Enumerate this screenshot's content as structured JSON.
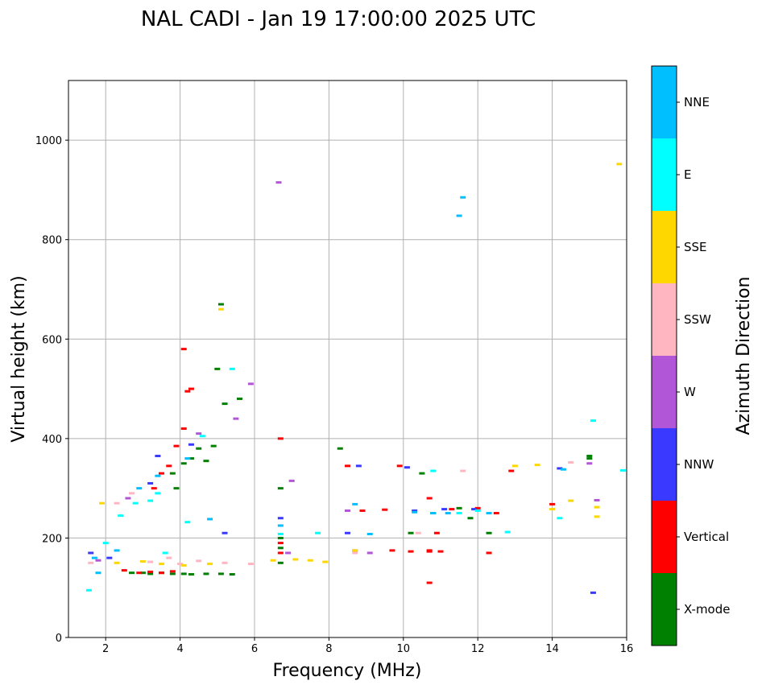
{
  "chart_data": {
    "type": "scatter",
    "title": "NAL CADI - Jan 19 17:00:00 2025 UTC",
    "xlabel": "Frequency (MHz)",
    "ylabel": "Virtual height (km)",
    "xlim": [
      1,
      16
    ],
    "ylim": [
      0,
      1120
    ],
    "xticks": [
      2,
      4,
      6,
      8,
      10,
      12,
      14,
      16
    ],
    "yticks": [
      0,
      200,
      400,
      600,
      800,
      1000
    ],
    "grid": true,
    "colorbar": {
      "label": "Azimuth Direction",
      "categories": [
        "X-mode",
        "Vertical",
        "NNW",
        "W",
        "SSW",
        "SSE",
        "E",
        "NNE"
      ],
      "colors": [
        "#008000",
        "#ff0000",
        "#3939ff",
        "#b256d8",
        "#ffb6c1",
        "#ffd700",
        "#00ffff",
        "#00bfff"
      ]
    },
    "series": [
      {
        "name": "X-mode",
        "points": [
          [
            2.7,
            130
          ],
          [
            3.0,
            130
          ],
          [
            3.2,
            128
          ],
          [
            3.5,
            130
          ],
          [
            3.8,
            128
          ],
          [
            4.1,
            128
          ],
          [
            4.3,
            127
          ],
          [
            4.7,
            128
          ],
          [
            5.1,
            128
          ],
          [
            5.4,
            127
          ],
          [
            3.8,
            330
          ],
          [
            3.9,
            300
          ],
          [
            4.1,
            350
          ],
          [
            4.3,
            360
          ],
          [
            4.5,
            380
          ],
          [
            4.7,
            355
          ],
          [
            4.9,
            385
          ],
          [
            5.2,
            470
          ],
          [
            5.6,
            480
          ],
          [
            5.0,
            540
          ],
          [
            5.1,
            670
          ],
          [
            6.7,
            200
          ],
          [
            6.7,
            180
          ],
          [
            6.7,
            300
          ],
          [
            6.7,
            150
          ],
          [
            8.3,
            380
          ],
          [
            10.5,
            330
          ],
          [
            10.2,
            210
          ],
          [
            10.8,
            250
          ],
          [
            11.5,
            260
          ],
          [
            11.8,
            240
          ],
          [
            12.3,
            210
          ],
          [
            15.0,
            360
          ],
          [
            15.0,
            365
          ]
        ]
      },
      {
        "name": "Vertical",
        "points": [
          [
            2.5,
            135
          ],
          [
            2.9,
            130
          ],
          [
            3.2,
            132
          ],
          [
            3.5,
            130
          ],
          [
            3.8,
            133
          ],
          [
            3.3,
            300
          ],
          [
            3.5,
            330
          ],
          [
            3.7,
            345
          ],
          [
            3.9,
            385
          ],
          [
            4.1,
            420
          ],
          [
            4.2,
            495
          ],
          [
            4.3,
            500
          ],
          [
            4.1,
            580
          ],
          [
            6.7,
            400
          ],
          [
            6.7,
            190
          ],
          [
            6.7,
            170
          ],
          [
            8.5,
            345
          ],
          [
            8.9,
            255
          ],
          [
            9.5,
            257
          ],
          [
            9.7,
            175
          ],
          [
            9.9,
            345
          ],
          [
            10.2,
            173
          ],
          [
            10.7,
            173
          ],
          [
            10.7,
            175
          ],
          [
            11.0,
            173
          ],
          [
            10.7,
            110
          ],
          [
            10.7,
            280
          ],
          [
            10.9,
            210
          ],
          [
            11.3,
            258
          ],
          [
            12.0,
            260
          ],
          [
            12.5,
            250
          ],
          [
            12.3,
            170
          ],
          [
            12.9,
            335
          ],
          [
            14.0,
            268
          ]
        ]
      },
      {
        "name": "NNW",
        "points": [
          [
            1.6,
            170
          ],
          [
            2.1,
            160
          ],
          [
            3.2,
            310
          ],
          [
            3.4,
            365
          ],
          [
            4.3,
            388
          ],
          [
            5.2,
            210
          ],
          [
            6.7,
            240
          ],
          [
            8.5,
            210
          ],
          [
            8.8,
            345
          ],
          [
            10.1,
            342
          ],
          [
            10.3,
            255
          ],
          [
            11.1,
            258
          ],
          [
            11.9,
            258
          ],
          [
            14.2,
            340
          ],
          [
            15.1,
            90
          ]
        ]
      },
      {
        "name": "W",
        "points": [
          [
            1.8,
            155
          ],
          [
            2.6,
            280
          ],
          [
            4.5,
            410
          ],
          [
            5.5,
            440
          ],
          [
            5.9,
            510
          ],
          [
            6.65,
            915
          ],
          [
            7.0,
            315
          ],
          [
            6.9,
            170
          ],
          [
            8.5,
            255
          ],
          [
            8.7,
            175
          ],
          [
            9.1,
            170
          ],
          [
            15.0,
            350
          ],
          [
            15.2,
            276
          ]
        ]
      },
      {
        "name": "SSW",
        "points": [
          [
            1.6,
            150
          ],
          [
            2.3,
            270
          ],
          [
            2.7,
            290
          ],
          [
            3.2,
            152
          ],
          [
            3.7,
            160
          ],
          [
            4.0,
            148
          ],
          [
            4.5,
            154
          ],
          [
            5.2,
            150
          ],
          [
            5.9,
            148
          ],
          [
            8.7,
            170
          ],
          [
            10.4,
            210
          ],
          [
            11.6,
            335
          ],
          [
            14.5,
            352
          ]
        ]
      },
      {
        "name": "SSE",
        "points": [
          [
            1.9,
            270
          ],
          [
            2.3,
            150
          ],
          [
            3.0,
            153
          ],
          [
            3.5,
            148
          ],
          [
            4.1,
            145
          ],
          [
            4.8,
            148
          ],
          [
            5.1,
            660
          ],
          [
            6.5,
            155
          ],
          [
            7.1,
            157
          ],
          [
            7.5,
            155
          ],
          [
            7.9,
            152
          ],
          [
            8.7,
            175
          ],
          [
            13.0,
            345
          ],
          [
            13.6,
            347
          ],
          [
            14.0,
            258
          ],
          [
            14.5,
            275
          ],
          [
            15.2,
            262
          ],
          [
            15.2,
            243
          ],
          [
            15.8,
            952
          ]
        ]
      },
      {
        "name": "E",
        "points": [
          [
            1.55,
            95
          ],
          [
            2.0,
            190
          ],
          [
            2.4,
            245
          ],
          [
            2.8,
            270
          ],
          [
            3.2,
            275
          ],
          [
            3.4,
            290
          ],
          [
            3.6,
            170
          ],
          [
            4.2,
            232
          ],
          [
            4.6,
            405
          ],
          [
            5.4,
            540
          ],
          [
            6.7,
            208
          ],
          [
            7.7,
            210
          ],
          [
            10.8,
            335
          ],
          [
            11.5,
            250
          ],
          [
            12.0,
            255
          ],
          [
            12.8,
            212
          ],
          [
            14.2,
            240
          ],
          [
            15.1,
            436
          ],
          [
            15.9,
            336
          ]
        ]
      },
      {
        "name": "NNE",
        "points": [
          [
            1.7,
            160
          ],
          [
            1.8,
            130
          ],
          [
            2.3,
            175
          ],
          [
            2.9,
            300
          ],
          [
            3.4,
            325
          ],
          [
            4.2,
            360
          ],
          [
            4.8,
            238
          ],
          [
            6.7,
            225
          ],
          [
            8.7,
            268
          ],
          [
            9.1,
            208
          ],
          [
            10.3,
            252
          ],
          [
            10.8,
            250
          ],
          [
            11.2,
            250
          ],
          [
            11.5,
            848
          ],
          [
            11.6,
            885
          ],
          [
            12.3,
            250
          ],
          [
            14.3,
            338
          ]
        ]
      }
    ]
  }
}
